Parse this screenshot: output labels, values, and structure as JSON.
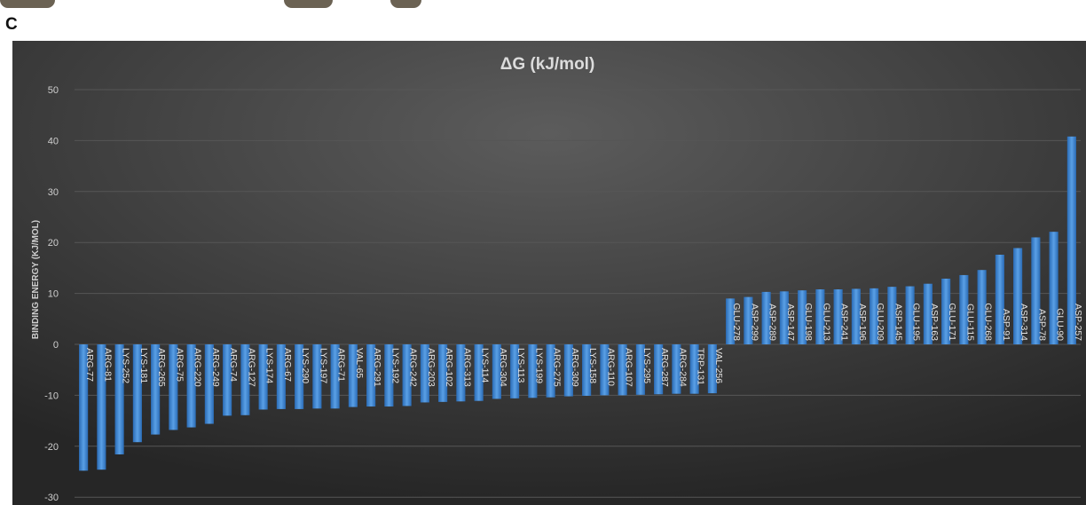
{
  "panel_letter": "C",
  "colors": {
    "background_light": "#5a5a5a",
    "background_dark": "#2b2b2b",
    "bar": "#4a90d9",
    "bar_dark": "#2a6bb5",
    "text": "#d9d9d9",
    "grid": "#585858"
  },
  "chart_data": {
    "type": "bar",
    "title": "ΔG (kJ/mol)",
    "xlabel": "",
    "ylabel": "BINDING ENERGY (KJ/MOL)",
    "ylim": [
      -30,
      50
    ],
    "yticks": [
      -30,
      -20,
      -10,
      0,
      10,
      20,
      30,
      40,
      50
    ],
    "grid": true,
    "legend": "none",
    "categories": [
      "ARG-77",
      "ARG-81",
      "LYS-252",
      "LYS-181",
      "ARG-265",
      "ARG-75",
      "ARG-220",
      "ARG-249",
      "ARG-74",
      "ARG-127",
      "LYS-174",
      "ARG-67",
      "LYS-290",
      "LYS-197",
      "ARG-71",
      "VAL-65",
      "ARG-291",
      "LYS-192",
      "ARG-242",
      "ARG-203",
      "ARG-102",
      "ARG-313",
      "LYS-114",
      "ARG-304",
      "LYS-113",
      "LYS-199",
      "ARG-275",
      "ARG-309",
      "LYS-158",
      "ARG-110",
      "ARG-107",
      "LYS-295",
      "ARG-287",
      "ARG-284",
      "TRP-131",
      "VAL-256",
      "GLU-278",
      "ASP-299",
      "ASP-289",
      "ASP-147",
      "GLU-198",
      "GLU-213",
      "ASP-241",
      "ASP-196",
      "GLU-209",
      "ASP-145",
      "GLU-195",
      "ASP-163",
      "GLU-171",
      "GLU-115",
      "GLU-268",
      "ASP-91",
      "ASP-314",
      "ASP-78",
      "GLU-90",
      "ASP-257"
    ],
    "values": [
      -24.8,
      -24.6,
      -21.6,
      -19.2,
      -17.7,
      -16.8,
      -16.3,
      -15.6,
      -14.0,
      -13.9,
      -12.8,
      -12.7,
      -12.7,
      -12.6,
      -12.6,
      -12.3,
      -12.2,
      -12.2,
      -12.1,
      -11.4,
      -11.3,
      -11.2,
      -11.1,
      -10.7,
      -10.6,
      -10.5,
      -10.4,
      -10.2,
      -10.1,
      -10.0,
      -10.0,
      -9.9,
      -9.8,
      -9.7,
      -9.7,
      -9.6,
      9.0,
      9.3,
      10.3,
      10.4,
      10.6,
      10.8,
      10.8,
      10.9,
      11.0,
      11.3,
      11.4,
      11.9,
      12.9,
      13.6,
      14.6,
      17.6,
      18.9,
      21.0,
      22.1,
      40.8
    ]
  }
}
